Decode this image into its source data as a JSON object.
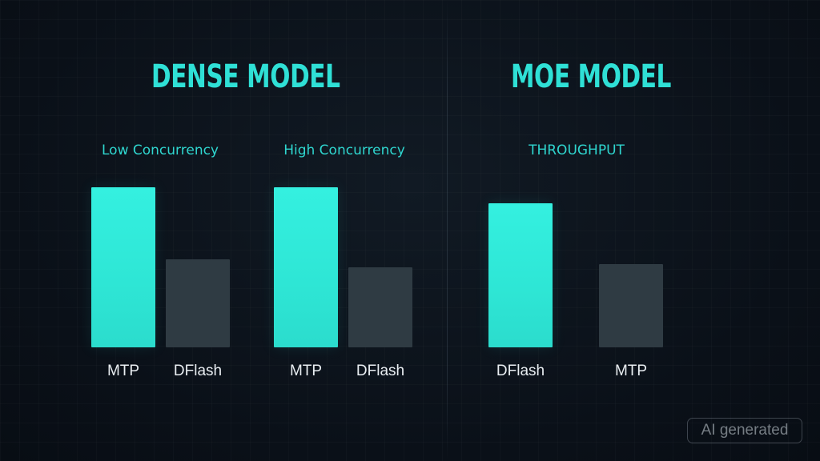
{
  "watermark": "AI generated",
  "chart_data": [
    {
      "type": "bar",
      "title": "DENSE MODEL",
      "groups": [
        {
          "label": "Low Concurrency",
          "categories": [
            "MTP",
            "DFlash"
          ],
          "values": [
            1.0,
            0.55
          ]
        },
        {
          "label": "High Concurrency",
          "categories": [
            "MTP",
            "DFlash"
          ],
          "values": [
            1.0,
            0.5
          ]
        }
      ],
      "xlabel": "",
      "ylabel": "",
      "grid": false
    },
    {
      "type": "bar",
      "title": "MOE MODEL",
      "groups": [
        {
          "label": "THROUGHPUT",
          "categories": [
            "DFlash",
            "MTP"
          ],
          "values": [
            0.9,
            0.52
          ]
        }
      ],
      "xlabel": "",
      "ylabel": "",
      "grid": false
    }
  ],
  "colors": {
    "background": "#0b1119",
    "accent": "#2fe0d6",
    "bar_primary": "#2ee6d5",
    "bar_secondary": "#2f3b43",
    "label_text": "#e9eef2"
  }
}
